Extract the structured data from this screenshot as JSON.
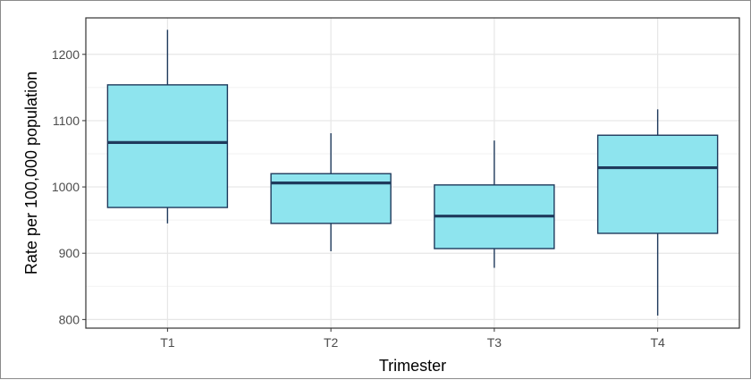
{
  "chart_data": {
    "type": "boxplot",
    "title": "",
    "xlabel": "Trimester",
    "ylabel": "Rate per 100,000 population",
    "categories": [
      "T1",
      "T2",
      "T3",
      "T4"
    ],
    "boxes": [
      {
        "category": "T1",
        "whisker_low": 945,
        "q1": 969,
        "median": 1067,
        "q3": 1154,
        "whisker_high": 1237
      },
      {
        "category": "T2",
        "whisker_low": 903,
        "q1": 945,
        "median": 1006,
        "q3": 1020,
        "whisker_high": 1081
      },
      {
        "category": "T3",
        "whisker_low": 878,
        "q1": 907,
        "median": 956,
        "q3": 1003,
        "whisker_high": 1070
      },
      {
        "category": "T4",
        "whisker_low": 806,
        "q1": 930,
        "median": 1029,
        "q3": 1078,
        "whisker_high": 1117
      }
    ],
    "yticks": [
      800,
      900,
      1000,
      1100,
      1200
    ],
    "ytick_labels": [
      "800",
      "900",
      "1000",
      "1100",
      "1200"
    ],
    "ylim": [
      787,
      1255
    ],
    "grid": true,
    "legend": "none",
    "colors": {
      "box_fill": "#8ee4ee",
      "box_stroke": "#1f3a5c",
      "grid_major": "#e6e6e6",
      "grid_minor": "#f2f2f2",
      "panel_border": "#333333"
    }
  }
}
